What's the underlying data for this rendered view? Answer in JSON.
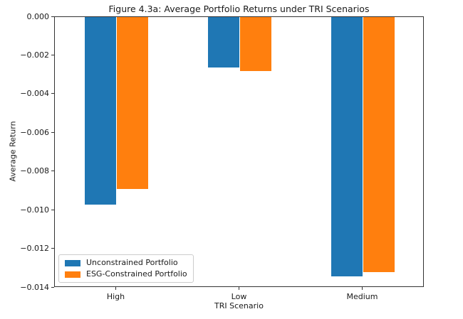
{
  "chart_data": {
    "type": "bar",
    "title": "Figure 4.3a: Average Portfolio Returns under TRI Scenarios",
    "xlabel": "TRI Scenario",
    "ylabel": "Average Return",
    "categories": [
      "High",
      "Low",
      "Medium"
    ],
    "series": [
      {
        "name": "Unconstrained Portfolio",
        "color": "#1f77b4",
        "values": [
          -0.0097,
          -0.0026,
          -0.0134
        ]
      },
      {
        "name": "ESG-Constrained Portfolio",
        "color": "#ff7f0e",
        "values": [
          -0.0089,
          -0.0028,
          -0.0132
        ]
      }
    ],
    "ylim": [
      -0.014,
      0.0
    ],
    "xlim": [
      -0.5,
      2.5
    ],
    "yticks": [
      0.0,
      -0.002,
      -0.004,
      -0.006,
      -0.008,
      -0.01,
      -0.012,
      -0.014
    ],
    "ytick_labels": [
      "0.000",
      "−0.002",
      "−0.004",
      "−0.006",
      "−0.008",
      "−0.010",
      "−0.012",
      "−0.014"
    ],
    "bar_width_units": 0.26,
    "grid": false,
    "legend_position": "lower left",
    "colors": {
      "unconstrained": "#1f77b4",
      "esg_constrained": "#ff7f0e",
      "spine": "#333333",
      "text": "#1a1a1a",
      "legend_border": "#cccccc"
    }
  }
}
